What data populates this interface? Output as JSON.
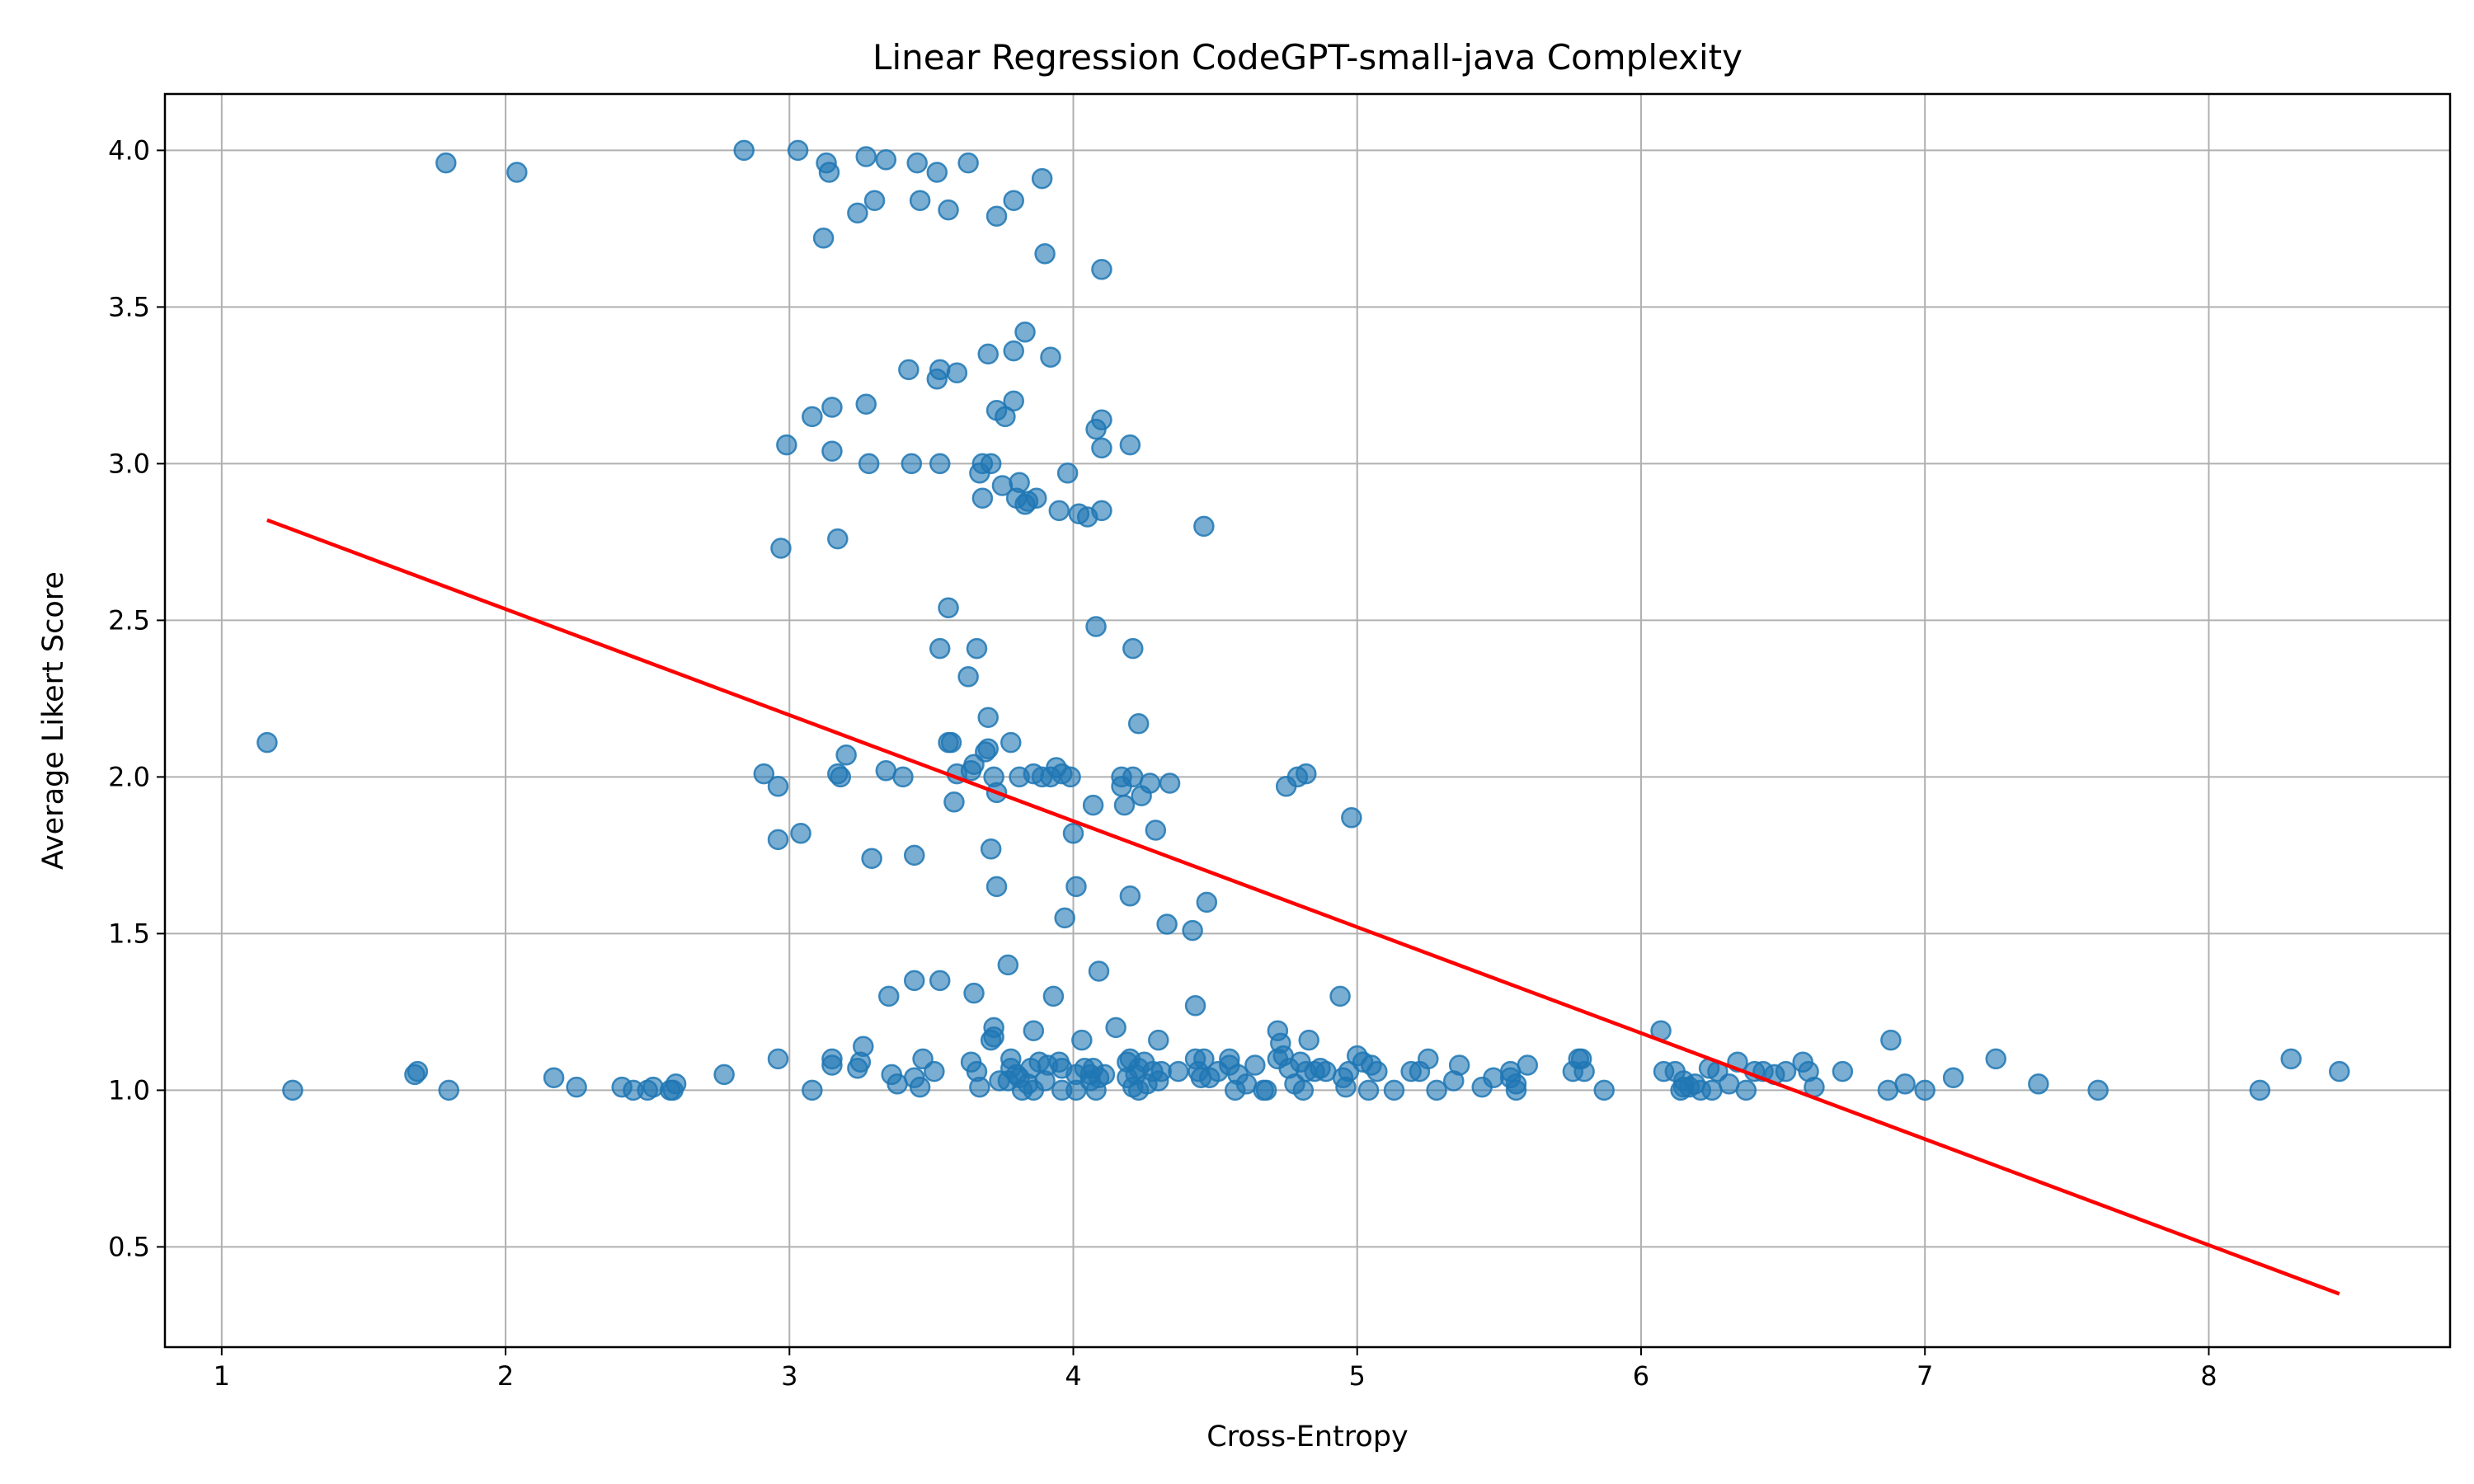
{
  "chart_data": {
    "type": "scatter",
    "title": "Linear Regression CodeGPT-small-java Complexity",
    "xlabel": "Cross-Entropy",
    "ylabel": "Average Likert Score",
    "xlim": [
      0.8,
      8.85
    ],
    "ylim": [
      0.18,
      4.18
    ],
    "xticks": [
      1,
      2,
      3,
      4,
      5,
      6,
      7,
      8
    ],
    "yticks": [
      0.5,
      1.0,
      1.5,
      2.0,
      2.5,
      3.0,
      3.5,
      4.0
    ],
    "ytick_labels": [
      "0.5",
      "1.0",
      "1.5",
      "2.0",
      "2.5",
      "3.0",
      "3.5",
      "4.0"
    ],
    "grid": true,
    "colors": {
      "points": "#1f77b4",
      "regression": "#ff0000",
      "grid": "#b0b0b0"
    },
    "points": [
      [
        1.16,
        2.11
      ],
      [
        1.25,
        1.0
      ],
      [
        1.68,
        1.05
      ],
      [
        1.69,
        1.06
      ],
      [
        1.79,
        3.96
      ],
      [
        1.8,
        1.0
      ],
      [
        2.04,
        3.93
      ],
      [
        2.17,
        1.04
      ],
      [
        2.25,
        1.01
      ],
      [
        2.41,
        1.01
      ],
      [
        2.45,
        1.0
      ],
      [
        2.5,
        1.0
      ],
      [
        2.52,
        1.01
      ],
      [
        2.58,
        1.0
      ],
      [
        2.59,
        1.0
      ],
      [
        2.6,
        1.02
      ],
      [
        2.77,
        1.05
      ],
      [
        2.84,
        4.0
      ],
      [
        2.91,
        2.01
      ],
      [
        2.96,
        1.97
      ],
      [
        2.96,
        1.1
      ],
      [
        2.96,
        1.8
      ],
      [
        2.97,
        2.73
      ],
      [
        2.99,
        3.06
      ],
      [
        3.03,
        4.0
      ],
      [
        3.04,
        1.82
      ],
      [
        3.08,
        3.15
      ],
      [
        3.08,
        1.0
      ],
      [
        3.12,
        3.72
      ],
      [
        3.13,
        3.96
      ],
      [
        3.14,
        3.93
      ],
      [
        3.15,
        3.18
      ],
      [
        3.15,
        3.04
      ],
      [
        3.15,
        1.1
      ],
      [
        3.15,
        1.08
      ],
      [
        3.17,
        2.76
      ],
      [
        3.17,
        2.01
      ],
      [
        3.18,
        2.0
      ],
      [
        3.2,
        2.07
      ],
      [
        3.24,
        3.8
      ],
      [
        3.24,
        1.07
      ],
      [
        3.25,
        1.09
      ],
      [
        3.26,
        1.14
      ],
      [
        3.27,
        3.98
      ],
      [
        3.27,
        3.19
      ],
      [
        3.28,
        3.0
      ],
      [
        3.29,
        1.74
      ],
      [
        3.3,
        3.84
      ],
      [
        3.34,
        3.97
      ],
      [
        3.34,
        2.02
      ],
      [
        3.35,
        1.3
      ],
      [
        3.36,
        1.05
      ],
      [
        3.38,
        1.02
      ],
      [
        3.4,
        2.0
      ],
      [
        3.42,
        3.3
      ],
      [
        3.43,
        3.0
      ],
      [
        3.44,
        1.04
      ],
      [
        3.44,
        1.35
      ],
      [
        3.44,
        1.75
      ],
      [
        3.45,
        3.96
      ],
      [
        3.46,
        3.84
      ],
      [
        3.46,
        1.01
      ],
      [
        3.47,
        1.1
      ],
      [
        3.51,
        1.06
      ],
      [
        3.52,
        3.93
      ],
      [
        3.52,
        3.27
      ],
      [
        3.53,
        3.3
      ],
      [
        3.53,
        3.0
      ],
      [
        3.53,
        2.41
      ],
      [
        3.53,
        1.35
      ],
      [
        3.56,
        3.81
      ],
      [
        3.56,
        2.54
      ],
      [
        3.56,
        2.11
      ],
      [
        3.57,
        2.11
      ],
      [
        3.58,
        1.92
      ],
      [
        3.59,
        3.29
      ],
      [
        3.59,
        2.01
      ],
      [
        3.63,
        3.96
      ],
      [
        3.63,
        2.32
      ],
      [
        3.64,
        2.02
      ],
      [
        3.64,
        1.09
      ],
      [
        3.65,
        2.04
      ],
      [
        3.65,
        1.31
      ],
      [
        3.66,
        2.41
      ],
      [
        3.66,
        1.06
      ],
      [
        3.67,
        2.97
      ],
      [
        3.67,
        1.01
      ],
      [
        3.68,
        3.0
      ],
      [
        3.68,
        2.89
      ],
      [
        3.69,
        2.08
      ],
      [
        3.7,
        2.09
      ],
      [
        3.7,
        3.35
      ],
      [
        3.7,
        2.19
      ],
      [
        3.71,
        3.0
      ],
      [
        3.71,
        1.77
      ],
      [
        3.71,
        1.16
      ],
      [
        3.72,
        1.2
      ],
      [
        3.72,
        1.17
      ],
      [
        3.72,
        2.0
      ],
      [
        3.73,
        3.79
      ],
      [
        3.73,
        3.17
      ],
      [
        3.73,
        1.95
      ],
      [
        3.73,
        1.65
      ],
      [
        3.74,
        1.03
      ],
      [
        3.75,
        2.93
      ],
      [
        3.76,
        3.15
      ],
      [
        3.77,
        1.4
      ],
      [
        3.77,
        1.03
      ],
      [
        3.78,
        1.1
      ],
      [
        3.78,
        1.07
      ],
      [
        3.78,
        2.11
      ],
      [
        3.79,
        3.84
      ],
      [
        3.79,
        3.36
      ],
      [
        3.79,
        3.2
      ],
      [
        3.8,
        2.89
      ],
      [
        3.8,
        1.05
      ],
      [
        3.81,
        2.94
      ],
      [
        3.81,
        2.0
      ],
      [
        3.81,
        1.04
      ],
      [
        3.82,
        1.0
      ],
      [
        3.83,
        3.42
      ],
      [
        3.83,
        2.87
      ],
      [
        3.84,
        2.88
      ],
      [
        3.84,
        1.02
      ],
      [
        3.85,
        1.07
      ],
      [
        3.86,
        2.01
      ],
      [
        3.86,
        1.19
      ],
      [
        3.86,
        1.0
      ],
      [
        3.87,
        2.89
      ],
      [
        3.88,
        1.09
      ],
      [
        3.89,
        3.91
      ],
      [
        3.89,
        2.0
      ],
      [
        3.9,
        3.67
      ],
      [
        3.9,
        1.03
      ],
      [
        3.91,
        1.08
      ],
      [
        3.92,
        3.34
      ],
      [
        3.92,
        2.0
      ],
      [
        3.93,
        1.3
      ],
      [
        3.94,
        2.03
      ],
      [
        3.95,
        2.85
      ],
      [
        3.95,
        1.09
      ],
      [
        3.96,
        1.0
      ],
      [
        3.96,
        1.07
      ],
      [
        3.96,
        2.01
      ],
      [
        3.97,
        1.55
      ],
      [
        3.98,
        2.97
      ],
      [
        3.99,
        2.0
      ],
      [
        4.0,
        1.82
      ],
      [
        4.01,
        1.65
      ],
      [
        4.01,
        1.05
      ],
      [
        4.01,
        1.0
      ],
      [
        4.02,
        2.84
      ],
      [
        4.03,
        1.16
      ],
      [
        4.04,
        1.07
      ],
      [
        4.05,
        2.83
      ],
      [
        4.06,
        1.03
      ],
      [
        4.06,
        1.05
      ],
      [
        4.07,
        1.91
      ],
      [
        4.07,
        1.07
      ],
      [
        4.08,
        3.11
      ],
      [
        4.08,
        2.48
      ],
      [
        4.08,
        1.0
      ],
      [
        4.09,
        1.38
      ],
      [
        4.09,
        1.04
      ],
      [
        4.1,
        3.14
      ],
      [
        4.1,
        3.05
      ],
      [
        4.1,
        2.85
      ],
      [
        4.1,
        3.62
      ],
      [
        4.11,
        1.05
      ],
      [
        4.15,
        1.2
      ],
      [
        4.17,
        2.0
      ],
      [
        4.17,
        1.97
      ],
      [
        4.18,
        1.91
      ],
      [
        4.19,
        1.04
      ],
      [
        4.19,
        1.09
      ],
      [
        4.2,
        1.62
      ],
      [
        4.2,
        3.06
      ],
      [
        4.2,
        1.1
      ],
      [
        4.21,
        2.41
      ],
      [
        4.21,
        2.0
      ],
      [
        4.21,
        1.01
      ],
      [
        4.22,
        1.05
      ],
      [
        4.23,
        2.17
      ],
      [
        4.23,
        1.0
      ],
      [
        4.23,
        1.07
      ],
      [
        4.24,
        1.94
      ],
      [
        4.25,
        1.09
      ],
      [
        4.26,
        1.02
      ],
      [
        4.27,
        1.98
      ],
      [
        4.28,
        1.06
      ],
      [
        4.29,
        1.83
      ],
      [
        4.3,
        1.16
      ],
      [
        4.3,
        1.03
      ],
      [
        4.31,
        1.06
      ],
      [
        4.33,
        1.53
      ],
      [
        4.34,
        1.98
      ],
      [
        4.37,
        1.06
      ],
      [
        4.42,
        1.51
      ],
      [
        4.43,
        1.1
      ],
      [
        4.43,
        1.27
      ],
      [
        4.44,
        1.06
      ],
      [
        4.45,
        1.04
      ],
      [
        4.46,
        1.1
      ],
      [
        4.46,
        2.8
      ],
      [
        4.47,
        1.6
      ],
      [
        4.48,
        1.04
      ],
      [
        4.51,
        1.06
      ],
      [
        4.55,
        1.1
      ],
      [
        4.55,
        1.08
      ],
      [
        4.57,
        1.0
      ],
      [
        4.58,
        1.05
      ],
      [
        4.61,
        1.02
      ],
      [
        4.64,
        1.08
      ],
      [
        4.67,
        1.0
      ],
      [
        4.68,
        1.0
      ],
      [
        4.72,
        1.1
      ],
      [
        4.72,
        1.19
      ],
      [
        4.73,
        1.15
      ],
      [
        4.74,
        1.11
      ],
      [
        4.75,
        1.97
      ],
      [
        4.76,
        1.07
      ],
      [
        4.78,
        1.02
      ],
      [
        4.79,
        2.0
      ],
      [
        4.8,
        1.09
      ],
      [
        4.81,
        1.0
      ],
      [
        4.82,
        2.01
      ],
      [
        4.82,
        1.06
      ],
      [
        4.83,
        1.16
      ],
      [
        4.85,
        1.06
      ],
      [
        4.87,
        1.07
      ],
      [
        4.89,
        1.06
      ],
      [
        4.94,
        1.3
      ],
      [
        4.95,
        1.04
      ],
      [
        4.96,
        1.01
      ],
      [
        4.97,
        1.06
      ],
      [
        4.98,
        1.87
      ],
      [
        5.0,
        1.11
      ],
      [
        5.02,
        1.09
      ],
      [
        5.04,
        1.0
      ],
      [
        5.05,
        1.08
      ],
      [
        5.07,
        1.06
      ],
      [
        5.13,
        1.0
      ],
      [
        5.19,
        1.06
      ],
      [
        5.22,
        1.06
      ],
      [
        5.25,
        1.1
      ],
      [
        5.28,
        1.0
      ],
      [
        5.34,
        1.03
      ],
      [
        5.36,
        1.08
      ],
      [
        5.44,
        1.01
      ],
      [
        5.48,
        1.04
      ],
      [
        5.54,
        1.06
      ],
      [
        5.54,
        1.04
      ],
      [
        5.56,
        1.0
      ],
      [
        5.56,
        1.02
      ],
      [
        5.6,
        1.08
      ],
      [
        5.76,
        1.06
      ],
      [
        5.78,
        1.1
      ],
      [
        5.79,
        1.1
      ],
      [
        5.8,
        1.06
      ],
      [
        5.87,
        1.0
      ],
      [
        6.07,
        1.19
      ],
      [
        6.08,
        1.06
      ],
      [
        6.12,
        1.06
      ],
      [
        6.14,
        1.0
      ],
      [
        6.15,
        1.03
      ],
      [
        6.15,
        1.01
      ],
      [
        6.17,
        1.01
      ],
      [
        6.19,
        1.02
      ],
      [
        6.21,
        1.0
      ],
      [
        6.24,
        1.07
      ],
      [
        6.25,
        1.0
      ],
      [
        6.27,
        1.06
      ],
      [
        6.31,
        1.02
      ],
      [
        6.34,
        1.09
      ],
      [
        6.37,
        1.0
      ],
      [
        6.4,
        1.06
      ],
      [
        6.43,
        1.06
      ],
      [
        6.47,
        1.05
      ],
      [
        6.51,
        1.06
      ],
      [
        6.57,
        1.09
      ],
      [
        6.59,
        1.06
      ],
      [
        6.61,
        1.01
      ],
      [
        6.71,
        1.06
      ],
      [
        6.87,
        1.0
      ],
      [
        6.88,
        1.16
      ],
      [
        6.93,
        1.02
      ],
      [
        7.0,
        1.0
      ],
      [
        7.1,
        1.04
      ],
      [
        7.25,
        1.1
      ],
      [
        7.4,
        1.02
      ],
      [
        7.61,
        1.0
      ],
      [
        8.18,
        1.0
      ],
      [
        8.29,
        1.1
      ],
      [
        8.46,
        1.06
      ]
    ],
    "regression_line": {
      "x": [
        1.16,
        8.46
      ],
      "y": [
        2.82,
        0.35
      ]
    }
  }
}
